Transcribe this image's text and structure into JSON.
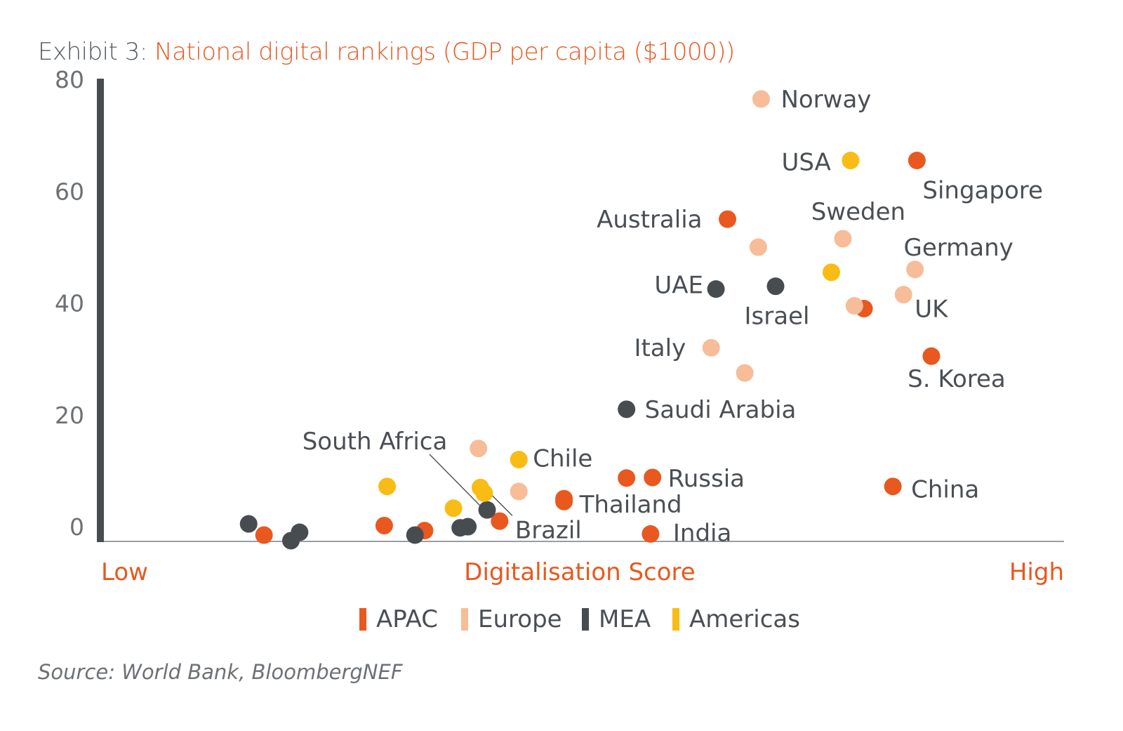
{
  "title": {
    "prefix": "Exhibit 3: ",
    "main": "National digital rankings (GDP per capita ($1000))"
  },
  "source": "Source: World Bank, BloombergNEF",
  "chart_data": {
    "type": "scatter",
    "xlabel": "Digitalisation Score",
    "x_low_label": "Low",
    "x_high_label": "High",
    "xlim": [
      0,
      100
    ],
    "ylim": [
      0,
      80
    ],
    "yticks": [
      0,
      20,
      40,
      60,
      80
    ],
    "legend": "bottom",
    "colors": {
      "APAC": "#e8581f",
      "Europe": "#f7bc98",
      "MEA": "#474c51",
      "Americas": "#f9bc15"
    },
    "series": [
      {
        "name": "APAC",
        "points": [
          {
            "x": 16.8,
            "y": -0.5
          },
          {
            "x": 29.3,
            "y": 1.2
          },
          {
            "x": 33.5,
            "y": 0.3
          },
          {
            "x": 41.3,
            "y": 2.0
          },
          {
            "x": 48.0,
            "y": 6.0
          },
          {
            "x": 54.5,
            "y": 9.7,
            "label": ""
          },
          {
            "x": 57.2,
            "y": 9.8,
            "label": "Russia"
          },
          {
            "x": 57.0,
            "y": -0.3,
            "label": "India"
          },
          {
            "x": 48.0,
            "y": 5.5,
            "label": "Thailand"
          },
          {
            "x": 65.0,
            "y": 56.0,
            "label": "Australia"
          },
          {
            "x": 79.2,
            "y": 40.0,
            "label": ""
          },
          {
            "x": 84.7,
            "y": 66.5,
            "label": "Singapore"
          },
          {
            "x": 86.2,
            "y": 31.5,
            "label": "S. Korea"
          },
          {
            "x": 82.2,
            "y": 8.2,
            "label": "China"
          }
        ]
      },
      {
        "name": "Europe",
        "points": [
          {
            "x": 39.1,
            "y": 15.0
          },
          {
            "x": 43.3,
            "y": 7.3
          },
          {
            "x": 63.3,
            "y": 33.0,
            "label": "Italy"
          },
          {
            "x": 66.8,
            "y": 28.5
          },
          {
            "x": 68.2,
            "y": 51.0
          },
          {
            "x": 68.5,
            "y": 77.5,
            "label": "Norway"
          },
          {
            "x": 77.0,
            "y": 52.5,
            "label": "Sweden"
          },
          {
            "x": 78.2,
            "y": 40.5
          },
          {
            "x": 83.3,
            "y": 42.5,
            "label": "UK"
          },
          {
            "x": 84.5,
            "y": 47.0,
            "label": "Germany"
          }
        ]
      },
      {
        "name": "MEA",
        "points": [
          {
            "x": 15.2,
            "y": 1.5
          },
          {
            "x": 19.6,
            "y": -1.5
          },
          {
            "x": 20.5,
            "y": 0.0
          },
          {
            "x": 32.5,
            "y": -0.5
          },
          {
            "x": 37.2,
            "y": 0.8
          },
          {
            "x": 38.0,
            "y": 1.0
          },
          {
            "x": 40.0,
            "y": 4.0,
            "label": "South Africa"
          },
          {
            "x": 54.5,
            "y": 22.0,
            "label": "Saudi Arabia"
          },
          {
            "x": 63.8,
            "y": 43.5,
            "label": "UAE"
          },
          {
            "x": 70.0,
            "y": 44.0,
            "label": "Israel"
          }
        ]
      },
      {
        "name": "Americas",
        "points": [
          {
            "x": 29.6,
            "y": 8.2
          },
          {
            "x": 36.5,
            "y": 4.3
          },
          {
            "x": 39.3,
            "y": 8.0
          },
          {
            "x": 39.7,
            "y": 7.0,
            "label": "Brazil"
          },
          {
            "x": 43.3,
            "y": 13.0,
            "label": "Chile"
          },
          {
            "x": 75.8,
            "y": 46.5
          },
          {
            "x": 77.8,
            "y": 66.5,
            "label": "USA"
          }
        ]
      }
    ]
  }
}
